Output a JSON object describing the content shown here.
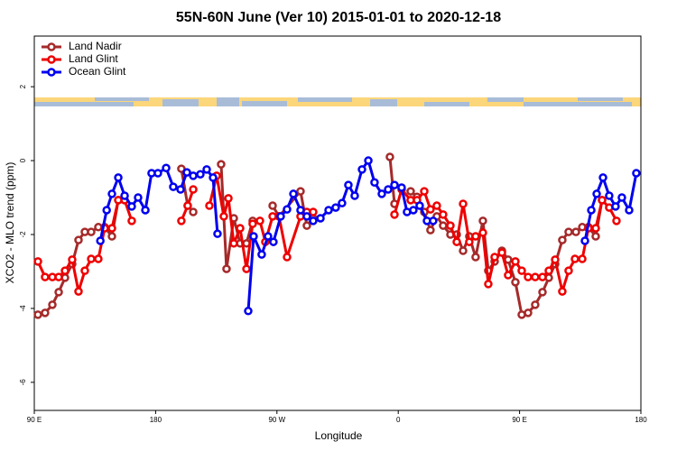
{
  "chart_data": {
    "type": "line",
    "title": "55N-60N June (Ver 10)   2015-01-01 to 2020-12-18",
    "xlabel": "Longitude",
    "ylabel": "XCO2 - MLO trend (ppm)",
    "xlim": [
      90,
      540
    ],
    "ylim": [
      -6.76,
      3.37
    ],
    "xticks": [
      {
        "value": 90,
        "label": "90 E"
      },
      180,
      {
        "value": 270,
        "label": "90 W"
      },
      {
        "value": 360,
        "label": "0"
      },
      {
        "value": 450,
        "label": "90 E"
      },
      {
        "value": 540,
        "label": "180"
      }
    ],
    "yticks": [
      -6,
      -4,
      -2,
      0,
      2
    ],
    "legend": "top-left",
    "series": [
      {
        "name": "Land Nadir",
        "color": "#a52a2a",
        "x": [
          92.7,
          98.0,
          103.4,
          108.1,
          112.8,
          118.1,
          122.8,
          127.5,
          132.2,
          137.5,
          142.2,
          147.6,
          152.3,
          null,
          199.1,
          203.8,
          207.9,
          null,
          228.6,
          232.6,
          238.0,
          242.7,
          247.4,
          252.0,
          null,
          266.8,
          271.5,
          287.5,
          292.2,
          296.9,
          null,
          353.8,
          357.2,
          null,
          369.2,
          373.9,
          379.3,
          383.9,
          388.6,
          393.3,
          398.7,
          403.4,
          408.1,
          412.7,
          417.4,
          422.8,
          426.8,
          431.5,
          436.9,
          441.5,
          446.9,
          451.6,
          456.3,
          461.6,
          467.0,
          471.7,
          476.4,
          481.7,
          486.4,
          491.8,
          496.5,
          501.1,
          506.5,
          511.2
        ],
        "values": [
          -4.17,
          -4.12,
          -3.9,
          -3.56,
          -3.17,
          -2.8,
          -2.15,
          -1.93,
          -1.93,
          -1.8,
          -1.8,
          -2.05,
          -1.07,
          null,
          -0.22,
          -1.22,
          -1.39,
          null,
          -0.1,
          -2.93,
          -1.56,
          -2.24,
          -2.24,
          -1.63,
          null,
          -1.22,
          -1.51,
          -0.83,
          -1.76,
          -1.56,
          null,
          0.1,
          -1.17,
          null,
          -0.83,
          -0.98,
          -1.39,
          -1.88,
          -1.51,
          -1.76,
          -2.0,
          -2.0,
          -2.44,
          -2.05,
          -2.61,
          -1.63,
          -2.98,
          -2.73,
          -2.44,
          -2.68,
          -3.29,
          -4.17,
          -4.12,
          -3.9,
          -3.56,
          -3.17,
          -2.8,
          -2.15,
          -1.93,
          -1.93,
          -1.8,
          -1.8,
          -2.05,
          -1.07
        ]
      },
      {
        "name": "Land Glint",
        "color": "#ee0000",
        "x": [
          92.7,
          98.0,
          103.4,
          108.1,
          112.8,
          118.1,
          122.8,
          127.5,
          132.2,
          137.5,
          142.2,
          147.6,
          152.3,
          157.0,
          162.3,
          null,
          199.1,
          203.8,
          207.9,
          null,
          219.9,
          225.3,
          230.6,
          234.0,
          238.0,
          242.7,
          247.4,
          252.0,
          257.4,
          261.4,
          266.8,
          271.5,
          277.5,
          287.5,
          292.2,
          296.9,
          null,
          357.2,
          362.5,
          369.2,
          373.9,
          379.3,
          383.9,
          388.6,
          393.3,
          398.7,
          403.4,
          408.1,
          412.7,
          417.4,
          422.8,
          426.8,
          431.5,
          436.9,
          441.5,
          446.9,
          451.6,
          456.3,
          461.6,
          467.0,
          471.7,
          476.4,
          481.7,
          486.4,
          491.1,
          496.5,
          501.1,
          506.5,
          511.2,
          516.5,
          521.9
        ],
        "values": [
          -2.73,
          -3.15,
          -3.15,
          -3.15,
          -2.98,
          -2.68,
          -3.54,
          -2.98,
          -2.66,
          -2.66,
          -1.83,
          -1.83,
          -1.07,
          -1.07,
          -1.63,
          null,
          -1.63,
          -1.22,
          -0.78,
          null,
          -1.22,
          -0.41,
          -1.51,
          -1.02,
          -2.24,
          -1.83,
          -2.93,
          -1.71,
          -1.63,
          -2.2,
          -1.51,
          -1.51,
          -2.61,
          -1.51,
          -1.39,
          -1.39,
          null,
          -1.46,
          -0.78,
          -1.07,
          -1.07,
          -0.83,
          -1.32,
          -1.22,
          -1.46,
          -1.76,
          -2.2,
          -1.17,
          -2.2,
          -2.05,
          -1.95,
          -3.34,
          -2.61,
          -2.49,
          -3.1,
          -2.73,
          -2.98,
          -3.15,
          -3.15,
          -3.15,
          -2.98,
          -2.68,
          -3.54,
          -2.98,
          -2.66,
          -2.66,
          -1.83,
          -1.83,
          -1.07,
          -1.27,
          -1.63
        ]
      },
      {
        "name": "Ocean Glint",
        "color": "#0000ee",
        "x": [
          139.0,
          143.7,
          147.6,
          152.3,
          157.0,
          162.3,
          167.0,
          172.4,
          177.0,
          181.7,
          187.8,
          193.1,
          198.5,
          203.2,
          207.9,
          213.2,
          217.9,
          222.6,
          225.9,
          null,
          248.7,
          252.7,
          258.7,
          263.4,
          267.4,
          272.8,
          277.5,
          282.2,
          287.5,
          292.2,
          296.9,
          302.3,
          308.3,
          313.6,
          318.3,
          323.0,
          327.7,
          333.1,
          337.8,
          342.4,
          347.8,
          352.5,
          357.2,
          362.5,
          366.5,
          371.2,
          375.9,
          381.3,
          385.9,
          null,
          498.5,
          503.2,
          507.2,
          511.9,
          516.5,
          521.2,
          525.9,
          531.3,
          536.6
        ],
        "values": [
          -2.17,
          -1.34,
          -0.9,
          -0.46,
          -0.95,
          -1.24,
          -1.0,
          -1.34,
          -0.34,
          -0.34,
          -0.2,
          -0.71,
          -0.78,
          -0.32,
          -0.41,
          -0.37,
          -0.24,
          -0.46,
          -1.98,
          null,
          -4.07,
          -2.05,
          -2.54,
          -2.05,
          -2.2,
          -1.51,
          -1.32,
          -0.9,
          -1.34,
          -1.51,
          -1.63,
          -1.56,
          -1.34,
          -1.27,
          -1.15,
          -0.66,
          -0.95,
          -0.24,
          0,
          -0.59,
          -0.9,
          -0.78,
          -0.66,
          -0.73,
          -1.39,
          -1.34,
          -1.22,
          -1.63,
          -1.63,
          null,
          -2.17,
          -1.34,
          -0.9,
          -0.46,
          -0.95,
          -1.24,
          -1.0,
          -1.34,
          -0.34
        ]
      }
    ]
  }
}
